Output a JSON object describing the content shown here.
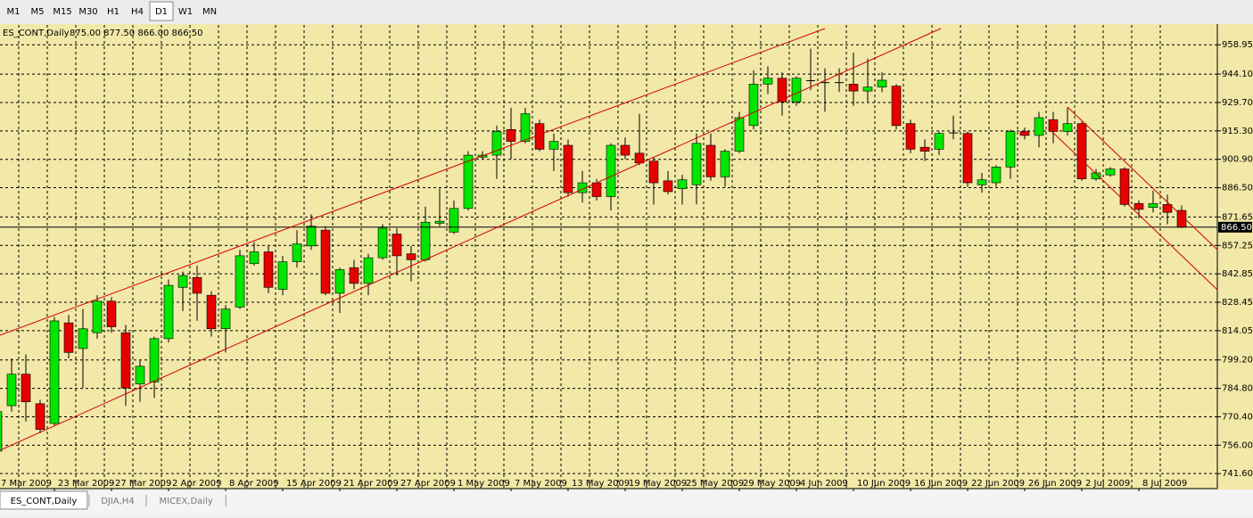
{
  "toolbar": {
    "buttons": [
      "M1",
      "M5",
      "M15",
      "M30",
      "H1",
      "H4",
      "D1",
      "W1",
      "MN"
    ],
    "active": "D1"
  },
  "tabs": {
    "items": [
      "ES_CONT,Daily",
      "DJIA,H4",
      "MICEX,Daily"
    ],
    "active": "ES_CONT,Daily"
  },
  "chart_data": {
    "type": "candlestick",
    "title": "ES_CONT,Daily",
    "subtitle": "875.00 877.50 866.00 866.50",
    "categories": [
      "7 Mar 2009",
      null,
      null,
      null,
      "23 Mar 2009",
      null,
      null,
      null,
      "27 Mar 2009",
      null,
      null,
      null,
      "2 Apr 2009",
      null,
      null,
      null,
      "8 Apr 2009",
      null,
      null,
      null,
      "15 Apr 2009",
      null,
      null,
      null,
      "21 Apr 2009",
      null,
      null,
      null,
      "27 Apr 2009",
      null,
      null,
      null,
      "1 May 2009",
      null,
      null,
      null,
      "7 May 2009",
      null,
      null,
      null,
      "13 May 2009",
      null,
      null,
      null,
      "19 May 2009",
      null,
      null,
      null,
      "25 May 2009",
      null,
      null,
      null,
      "29 May 2009",
      null,
      null,
      null,
      "4 Jun 2009",
      null,
      null,
      null,
      "10 Jun 2009",
      null,
      null,
      null,
      "16 Jun 2009",
      null,
      null,
      null,
      "22 Jun 2009",
      null,
      null,
      null,
      "26 Jun 2009",
      null,
      null,
      null,
      "2 Jul 2009",
      null,
      null,
      null,
      "8 Jul 2009",
      null,
      null,
      null
    ],
    "open": [
      753,
      776,
      792,
      777,
      767,
      818,
      805,
      813,
      829,
      813,
      787,
      788,
      810,
      836,
      841,
      832,
      815,
      826,
      848,
      854,
      835,
      849,
      857,
      865,
      833,
      846,
      838,
      851,
      863,
      853,
      850,
      868.5,
      864,
      876,
      902,
      903,
      916,
      910,
      919,
      906,
      908,
      884,
      889,
      882,
      908,
      904,
      900,
      890,
      886,
      888,
      908,
      892,
      905,
      918,
      939,
      942,
      930,
      941,
      940,
      940,
      939,
      935.5,
      937.5,
      938,
      919,
      907,
      906,
      914.5,
      914,
      888,
      889,
      897,
      915,
      913,
      921,
      915,
      919,
      891,
      893,
      896,
      878.5,
      876.5,
      878,
      875
    ],
    "high": [
      775,
      800,
      802,
      779,
      821,
      822,
      825,
      832,
      831,
      817,
      799,
      811,
      840,
      844,
      847,
      834,
      827,
      855,
      859,
      857,
      852,
      865,
      873,
      867,
      846,
      850,
      853,
      868,
      866,
      857,
      877,
      886,
      880,
      905,
      905,
      918,
      927,
      927,
      921,
      914,
      911,
      895,
      891,
      909,
      912,
      924,
      902,
      895,
      893,
      914,
      914,
      906,
      925,
      946,
      948,
      945,
      943,
      957,
      947,
      947,
      955,
      952,
      945,
      939,
      921,
      911,
      915,
      923,
      915,
      894,
      898,
      916,
      917,
      925,
      925,
      927,
      920,
      896,
      897,
      897,
      880,
      885,
      883,
      877.5
    ],
    "low": [
      750,
      773,
      768,
      762,
      766,
      800,
      785,
      810,
      813,
      776,
      778,
      780,
      808,
      824,
      819,
      811,
      803,
      825,
      847,
      833,
      832,
      846,
      855,
      832,
      823,
      835,
      832,
      850,
      842,
      839,
      849,
      867,
      863,
      875,
      901,
      891,
      901,
      909,
      905,
      895,
      882,
      879,
      880,
      875,
      901,
      898,
      878,
      883,
      878,
      878,
      890,
      887,
      904,
      916,
      934,
      923,
      928,
      936,
      925,
      935,
      928,
      930,
      935,
      916,
      904,
      900,
      903,
      911,
      887,
      884,
      887,
      891,
      911,
      907,
      909,
      913,
      890,
      890,
      892,
      877,
      871,
      874,
      868,
      866
    ],
    "close": [
      773,
      792,
      778,
      764,
      819,
      803,
      815,
      829,
      816,
      785,
      796,
      810,
      837,
      842,
      833,
      815,
      825,
      852,
      854,
      836,
      849,
      858,
      867,
      833,
      845,
      838,
      851,
      866,
      852,
      850,
      869,
      869.5,
      876,
      903,
      903,
      915,
      910,
      924,
      906,
      910,
      884,
      889,
      882,
      908,
      903,
      899,
      889,
      884.5,
      890.5,
      909,
      892,
      905,
      922,
      939,
      942,
      930,
      942,
      941,
      940,
      940,
      935.5,
      937.5,
      941,
      918,
      906,
      905,
      914,
      914.5,
      889,
      890.5,
      897,
      915,
      913,
      922,
      915,
      919,
      891,
      894,
      896,
      878,
      875.5,
      878.5,
      874,
      866.5
    ],
    "up_color": "#00e600",
    "down_color": "#e60000",
    "ylim": [
      734,
      969
    ],
    "yticks": [
      958.95,
      {
        "value": 944.1,
        "label": "944.10"
      },
      {
        "value": 929.7,
        "label": "929.70"
      },
      {
        "value": 915.3,
        "label": "915.30"
      },
      {
        "value": 900.9,
        "label": "900.90"
      },
      {
        "value": 886.5,
        "label": "886.50"
      },
      871.65,
      857.25,
      842.85,
      828.45,
      814.05,
      {
        "value": 799.2,
        "label": "799.20"
      },
      {
        "value": 784.8,
        "label": "784.80"
      },
      {
        "value": 770.4,
        "label": "770.40"
      },
      {
        "value": 756,
        "label": "756.00"
      },
      {
        "value": 741.6,
        "label": "741.60"
      }
    ],
    "last_price": {
      "value": 866.5,
      "label": "866.50"
    },
    "grid": true
  }
}
